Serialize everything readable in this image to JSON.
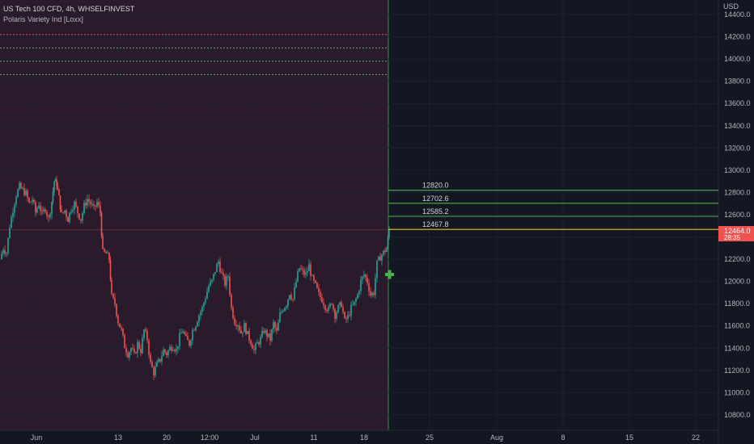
{
  "header": {
    "symbol_line": "US Tech 100 CFD, 4h, WHSELFINVEST",
    "indicator_line": "Polaris Variety Ind [Loxx]"
  },
  "colors": {
    "background": "#131722",
    "history_bg": "#2a1a2c",
    "up": "#26a69a",
    "down": "#ef5350",
    "green_level": "#4caf50",
    "yellow_level": "#e6c531",
    "price_tag": "#ef5350",
    "signal": "#4caf50"
  },
  "chart_data": {
    "type": "candlestick",
    "currency": "USD",
    "yaxis_ticks": [
      "14400.0",
      "14200.0",
      "14000.0",
      "13800.0",
      "13600.0",
      "13400.0",
      "13200.0",
      "13000.0",
      "12800.0",
      "12600.0",
      "12400.0",
      "12200.0",
      "12000.0",
      "11800.0",
      "11600.0",
      "11400.0",
      "11200.0",
      "11000.0",
      "10800.0"
    ],
    "ylim": [
      10740,
      14500
    ],
    "xaxis_labels": [
      "Jun",
      "13",
      "20",
      "12:00",
      "Jul",
      "11",
      "18",
      "25",
      "Aug",
      "8",
      "15",
      "22"
    ],
    "last_price": "12464.0",
    "price_change_label": "28:35",
    "forecast_levels": [
      {
        "value": 12820.0,
        "label": "12820.0",
        "color": "#4caf50"
      },
      {
        "value": 12702.6,
        "label": "12702.6",
        "color": "#4caf50"
      },
      {
        "value": 12585.2,
        "label": "12585.2",
        "color": "#4caf50"
      },
      {
        "value": 12467.8,
        "label": "12467.8",
        "color": "#e6c531"
      }
    ],
    "upper_dotted_levels": [
      {
        "value": 14220,
        "color": "#ef5350"
      },
      {
        "value": 14100,
        "color": "#4caf50"
      },
      {
        "value": 13980,
        "color": "#4caf50"
      },
      {
        "value": 13860,
        "color": "#4caf50"
      }
    ],
    "close_path": [
      [
        0,
        12200
      ],
      [
        4,
        12300
      ],
      [
        8,
        12260
      ],
      [
        12,
        12500
      ],
      [
        16,
        12650
      ],
      [
        20,
        12780
      ],
      [
        24,
        12850
      ],
      [
        28,
        12820
      ],
      [
        32,
        12790
      ],
      [
        36,
        12700
      ],
      [
        40,
        12740
      ],
      [
        44,
        12620
      ],
      [
        48,
        12700
      ],
      [
        52,
        12600
      ],
      [
        56,
        12660
      ],
      [
        60,
        12560
      ],
      [
        64,
        12720
      ],
      [
        67,
        12900
      ],
      [
        70,
        12880
      ],
      [
        73,
        12750
      ],
      [
        76,
        12600
      ],
      [
        80,
        12640
      ],
      [
        84,
        12560
      ],
      [
        88,
        12660
      ],
      [
        92,
        12700
      ],
      [
        96,
        12620
      ],
      [
        100,
        12560
      ],
      [
        104,
        12680
      ],
      [
        108,
        12740
      ],
      [
        112,
        12700
      ],
      [
        116,
        12650
      ],
      [
        120,
        12710
      ],
      [
        124,
        12620
      ],
      [
        127,
        12260
      ],
      [
        131,
        12250
      ],
      [
        135,
        12200
      ],
      [
        138,
        11860
      ],
      [
        142,
        11800
      ],
      [
        146,
        11640
      ],
      [
        150,
        11560
      ],
      [
        154,
        11420
      ],
      [
        158,
        11350
      ],
      [
        162,
        11400
      ],
      [
        166,
        11330
      ],
      [
        170,
        11440
      ],
      [
        174,
        11380
      ],
      [
        178,
        11560
      ],
      [
        182,
        11480
      ],
      [
        186,
        11260
      ],
      [
        190,
        11180
      ],
      [
        194,
        11250
      ],
      [
        198,
        11300
      ],
      [
        202,
        11380
      ],
      [
        206,
        11350
      ],
      [
        210,
        11400
      ],
      [
        214,
        11420
      ],
      [
        218,
        11380
      ],
      [
        222,
        11500
      ],
      [
        226,
        11560
      ],
      [
        230,
        11480
      ],
      [
        234,
        11440
      ],
      [
        238,
        11560
      ],
      [
        242,
        11620
      ],
      [
        246,
        11700
      ],
      [
        250,
        11760
      ],
      [
        254,
        11860
      ],
      [
        258,
        11960
      ],
      [
        262,
        12000
      ],
      [
        266,
        12100
      ],
      [
        270,
        12180
      ],
      [
        274,
        12060
      ],
      [
        278,
        11980
      ],
      [
        282,
        12050
      ],
      [
        286,
        11760
      ],
      [
        290,
        11640
      ],
      [
        294,
        11620
      ],
      [
        298,
        11540
      ],
      [
        302,
        11600
      ],
      [
        306,
        11520
      ],
      [
        310,
        11460
      ],
      [
        314,
        11380
      ],
      [
        318,
        11440
      ],
      [
        322,
        11480
      ],
      [
        326,
        11560
      ],
      [
        330,
        11520
      ],
      [
        334,
        11480
      ],
      [
        338,
        11620
      ],
      [
        342,
        11540
      ],
      [
        346,
        11700
      ],
      [
        350,
        11760
      ],
      [
        354,
        11800
      ],
      [
        358,
        11900
      ],
      [
        362,
        11840
      ],
      [
        366,
        12000
      ],
      [
        370,
        12120
      ],
      [
        374,
        12080
      ],
      [
        378,
        12060
      ],
      [
        382,
        12140
      ],
      [
        386,
        12020
      ],
      [
        390,
        11960
      ],
      [
        394,
        11880
      ],
      [
        398,
        11840
      ],
      [
        402,
        11780
      ],
      [
        406,
        11740
      ],
      [
        410,
        11820
      ],
      [
        414,
        11700
      ],
      [
        418,
        11760
      ],
      [
        422,
        11800
      ],
      [
        426,
        11640
      ],
      [
        430,
        11680
      ],
      [
        434,
        11760
      ],
      [
        438,
        11800
      ],
      [
        442,
        11880
      ],
      [
        446,
        12000
      ],
      [
        450,
        12060
      ],
      [
        454,
        12000
      ],
      [
        458,
        11880
      ],
      [
        462,
        11900
      ],
      [
        466,
        12160
      ],
      [
        470,
        12220
      ],
      [
        474,
        12260
      ],
      [
        478,
        12300
      ],
      [
        481,
        12464
      ]
    ]
  }
}
